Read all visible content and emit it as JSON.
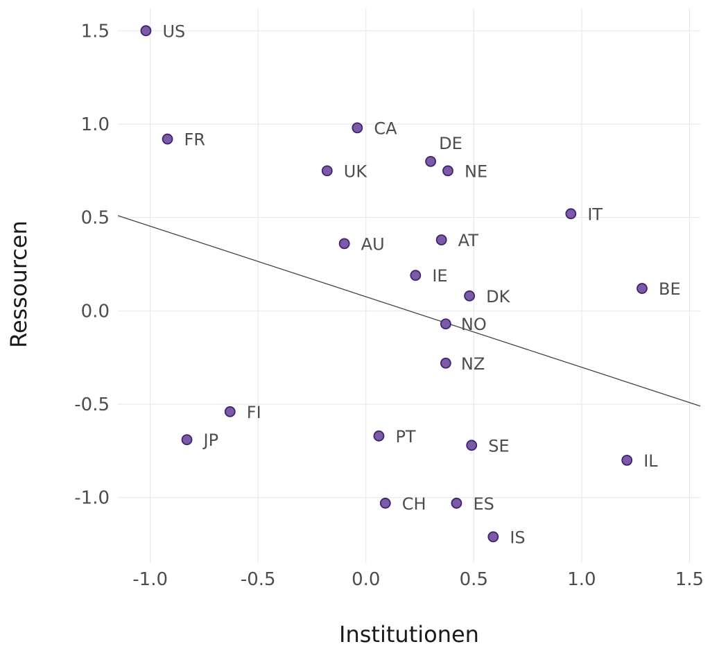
{
  "chart_data": {
    "type": "scatter",
    "title": "",
    "xlabel": "Institutionen",
    "ylabel": "Ressourcen",
    "xlim": [
      -1.15,
      1.55
    ],
    "ylim": [
      -1.35,
      1.62
    ],
    "x_ticks": [
      -1.0,
      -0.5,
      0.0,
      0.5,
      1.0,
      1.5
    ],
    "x_tick_labels": [
      "-1.0",
      "-0.5",
      "0.0",
      "0.5",
      "1.0",
      "1.5"
    ],
    "y_ticks": [
      1.5,
      1.0,
      0.5,
      0.0,
      -0.5,
      -1.0
    ],
    "y_tick_labels": [
      "1.5",
      "1.0",
      "0.5",
      "0.0",
      "-0.5",
      "-1.0"
    ],
    "grid": true,
    "legend": "none",
    "point_fill": "#7b5aa6",
    "point_stroke": "#3f2270",
    "trend_line": {
      "x": [
        -1.15,
        1.55
      ],
      "y": [
        0.51,
        -0.51
      ]
    },
    "points": [
      {
        "label": "US",
        "x": -1.02,
        "y": 1.5
      },
      {
        "label": "FR",
        "x": -0.92,
        "y": 0.92
      },
      {
        "label": "CA",
        "x": -0.04,
        "y": 0.98
      },
      {
        "label": "UK",
        "x": -0.18,
        "y": 0.75
      },
      {
        "label": "DE",
        "x": 0.3,
        "y": 0.8
      },
      {
        "label": "NE",
        "x": 0.38,
        "y": 0.75
      },
      {
        "label": "IT",
        "x": 0.95,
        "y": 0.52
      },
      {
        "label": "AU",
        "x": -0.1,
        "y": 0.36
      },
      {
        "label": "AT",
        "x": 0.35,
        "y": 0.38
      },
      {
        "label": "IE",
        "x": 0.23,
        "y": 0.19
      },
      {
        "label": "DK",
        "x": 0.48,
        "y": 0.08
      },
      {
        "label": "BE",
        "x": 1.28,
        "y": 0.12
      },
      {
        "label": "NO",
        "x": 0.37,
        "y": -0.07
      },
      {
        "label": "NZ",
        "x": 0.37,
        "y": -0.28
      },
      {
        "label": "FI",
        "x": -0.63,
        "y": -0.54
      },
      {
        "label": "JP",
        "x": -0.83,
        "y": -0.69
      },
      {
        "label": "PT",
        "x": 0.06,
        "y": -0.67
      },
      {
        "label": "SE",
        "x": 0.49,
        "y": -0.72
      },
      {
        "label": "IL",
        "x": 1.21,
        "y": -0.8
      },
      {
        "label": "CH",
        "x": 0.09,
        "y": -1.03
      },
      {
        "label": "ES",
        "x": 0.42,
        "y": -1.03
      },
      {
        "label": "IS",
        "x": 0.59,
        "y": -1.21
      }
    ]
  }
}
